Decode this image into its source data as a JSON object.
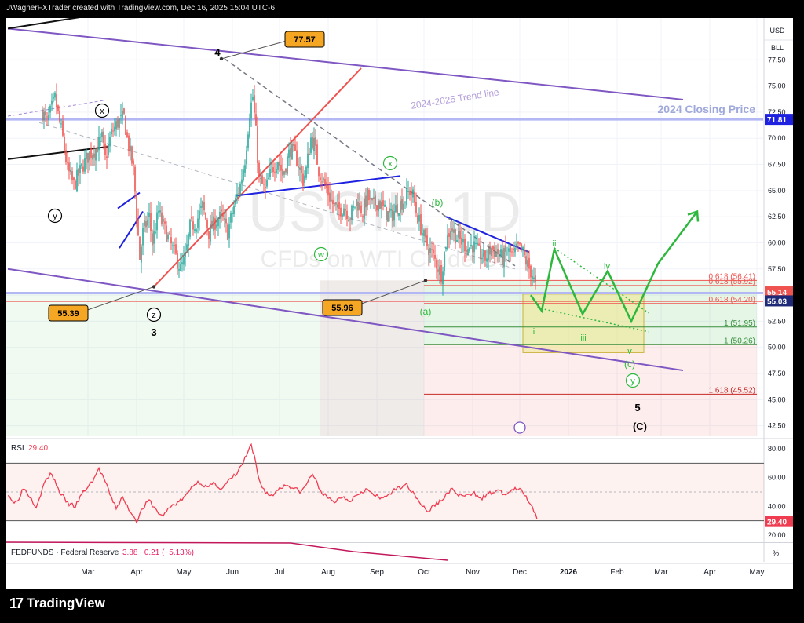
{
  "header": {
    "credit": "JWagnerFXTrader created with TradingView.com, Dec 16, 2025 15:04 UTC-6"
  },
  "brand": {
    "name": "TradingView",
    "icon": "tradingview-logo-icon"
  },
  "chart_data": {
    "type": "candlestick",
    "symbol_watermark": "USOIL, 1D",
    "watermark_sub": "CFDs on WTI Crude Oil",
    "currency": "USD",
    "unit": "BLL",
    "ylim": [
      41.5,
      81.5
    ],
    "y_ticks": [
      42.5,
      45.0,
      47.5,
      50.0,
      52.5,
      55.0,
      57.5,
      60.0,
      62.5,
      65.0,
      67.5,
      70.0,
      72.5,
      75.0,
      77.5
    ],
    "x_labels": [
      {
        "label": "Mar",
        "d": 51
      },
      {
        "label": "Apr",
        "d": 82
      },
      {
        "label": "May",
        "d": 112
      },
      {
        "label": "Jun",
        "d": 143
      },
      {
        "label": "Jul",
        "d": 173
      },
      {
        "label": "Aug",
        "d": 204
      },
      {
        "label": "Sep",
        "d": 235
      },
      {
        "label": "Oct",
        "d": 265
      },
      {
        "label": "Nov",
        "d": 296
      },
      {
        "label": "Dec",
        "d": 326
      },
      {
        "label": "2026",
        "d": 357
      },
      {
        "label": "Feb",
        "d": 388
      },
      {
        "label": "Mar",
        "d": 416
      },
      {
        "label": "Apr",
        "d": 447
      },
      {
        "label": "May",
        "d": 477
      }
    ],
    "colors": {
      "up": "#26a69a",
      "down": "#ef5350",
      "purple": "#7e57c2",
      "green": "#2db83d",
      "blue": "#1e22e0"
    },
    "anchors": [
      [
        22,
        72.5
      ],
      [
        25,
        71.5
      ],
      [
        30,
        73.8
      ],
      [
        35,
        70.0
      ],
      [
        38,
        67.0
      ],
      [
        42,
        65.5
      ],
      [
        48,
        67.5
      ],
      [
        52,
        68.5
      ],
      [
        56,
        69.0
      ],
      [
        60,
        70.0
      ],
      [
        62,
        68.0
      ],
      [
        66,
        70.5
      ],
      [
        70,
        71.5
      ],
      [
        74,
        72.0
      ],
      [
        76,
        70.0
      ],
      [
        80,
        67.0
      ],
      [
        84,
        58.5
      ],
      [
        86,
        61.0
      ],
      [
        90,
        62.5
      ],
      [
        92,
        60.0
      ],
      [
        96,
        63.0
      ],
      [
        98,
        62.0
      ],
      [
        102,
        60.5
      ],
      [
        106,
        59.0
      ],
      [
        110,
        57.5
      ],
      [
        113,
        58.5
      ],
      [
        116,
        61.5
      ],
      [
        120,
        62.0
      ],
      [
        124,
        63.5
      ],
      [
        128,
        61.0
      ],
      [
        132,
        62.0
      ],
      [
        136,
        62.5
      ],
      [
        140,
        61.0
      ],
      [
        144,
        63.5
      ],
      [
        148,
        65.5
      ],
      [
        151,
        68.0
      ],
      [
        154,
        72.5
      ],
      [
        156,
        74.0
      ],
      [
        158,
        70.5
      ],
      [
        160,
        66.0
      ],
      [
        164,
        65.0
      ],
      [
        168,
        67.0
      ],
      [
        172,
        68.0
      ],
      [
        175,
        66.5
      ],
      [
        180,
        69.0
      ],
      [
        184,
        68.0
      ],
      [
        188,
        66.0
      ],
      [
        190,
        67.0
      ],
      [
        193,
        70.0
      ],
      [
        195,
        69.5
      ],
      [
        198,
        67.0
      ],
      [
        202,
        65.5
      ],
      [
        206,
        64.0
      ],
      [
        210,
        63.0
      ],
      [
        214,
        63.5
      ],
      [
        218,
        62.5
      ],
      [
        222,
        64.0
      ],
      [
        226,
        63.0
      ],
      [
        229,
        64.5
      ],
      [
        232,
        63.5
      ],
      [
        236,
        64.0
      ],
      [
        240,
        63.0
      ],
      [
        244,
        62.5
      ],
      [
        248,
        63.5
      ],
      [
        252,
        64.0
      ],
      [
        256,
        65.0
      ],
      [
        258,
        64.5
      ],
      [
        260,
        63.0
      ],
      [
        263,
        61.5
      ],
      [
        266,
        60.0
      ],
      [
        270,
        59.0
      ],
      [
        273,
        58.0
      ],
      [
        276,
        57.0
      ],
      [
        279,
        60.0
      ],
      [
        282,
        61.5
      ],
      [
        286,
        60.5
      ],
      [
        290,
        60.0
      ],
      [
        293,
        59.5
      ],
      [
        296,
        59.8
      ],
      [
        300,
        59.0
      ],
      [
        304,
        58.5
      ],
      [
        308,
        59.5
      ],
      [
        312,
        59.0
      ],
      [
        315,
        58.5
      ],
      [
        318,
        59.2
      ],
      [
        322,
        58.8
      ],
      [
        325,
        59.5
      ],
      [
        328,
        59.0
      ],
      [
        331,
        57.8
      ],
      [
        334,
        57.0
      ],
      [
        337,
        55.1
      ]
    ],
    "overlays": {
      "purple_channel_upper": {
        "p1": [
          0,
          80.5
        ],
        "p2": [
          430,
          73.7
        ]
      },
      "purple_channel_lower": {
        "p1": [
          0,
          57.5
        ],
        "p2": [
          430,
          47.8
        ]
      },
      "trend_line_label": "2024-2025 Trend line",
      "closing_price_line": {
        "y": 71.81,
        "label": "2024 Closing Price"
      },
      "support_line": {
        "y": 55.2
      },
      "black_lines": [
        {
          "p1": [
            0,
            80.5
          ],
          "p2": [
            64,
            82.0
          ]
        },
        {
          "p1": [
            0,
            68.0
          ],
          "p2": [
            64,
            69.2
          ]
        }
      ],
      "red_line": {
        "p1": [
          93,
          55.8
        ],
        "p2": [
          225,
          76.7
        ]
      },
      "blue_line_top": {
        "p1": [
          145,
          64.5
        ],
        "p2": [
          250,
          66.4
        ]
      },
      "blue_line_2": {
        "p1": [
          279,
          62.5
        ],
        "p2": [
          332,
          59.1
        ]
      },
      "blue_small": {
        "p1": [
          70,
          59.5
        ],
        "p2": [
          85,
          64.8
        ]
      },
      "gray_dashed_line": {
        "p1": [
          138,
          77.6
        ],
        "p2": [
          323,
          57.8
        ]
      },
      "fib_levels": [
        {
          "label": "0.618 (56.41)",
          "y": 56.41
        },
        {
          "label": "0.618 (55.92)",
          "y": 55.92
        },
        {
          "label": "0.618 (54.20)",
          "y": 54.2
        },
        {
          "label": "1 (51.95)",
          "y": 51.95
        },
        {
          "label": "1 (50.26)",
          "y": 50.26
        },
        {
          "label": "1.618 (45.52)",
          "y": 45.52
        }
      ],
      "projection_path": [
        [
          333,
          55.0
        ],
        [
          340,
          53.5
        ],
        [
          348,
          59.4
        ],
        [
          366,
          53.2
        ],
        [
          382,
          57.3
        ],
        [
          397,
          52.5
        ],
        [
          414,
          58.0
        ],
        [
          439,
          63.0
        ]
      ],
      "projection_dotted": [
        {
          "p1": [
            337,
            53.8
          ],
          "p2": [
            408,
            51.5
          ]
        },
        {
          "p1": [
            348,
            59.5
          ],
          "p2": [
            408,
            53.3
          ]
        }
      ],
      "box": {
        "x0": 328,
        "x1": 405,
        "y0": 49.5,
        "y1": 55.1
      }
    },
    "callouts": [
      {
        "label": "77.57",
        "value": 77.57
      },
      {
        "label": "55.39",
        "value": 55.39
      },
      {
        "label": "55.96",
        "value": 55.96
      }
    ],
    "wave_labels": [
      {
        "text": "4"
      },
      {
        "text": "3"
      },
      {
        "text": "5"
      },
      {
        "text": "(C)"
      },
      {
        "text": "x"
      },
      {
        "text": "y"
      },
      {
        "text": "z"
      },
      {
        "text": "x"
      },
      {
        "text": "w"
      },
      {
        "text": "(b)"
      },
      {
        "text": "(a)"
      },
      {
        "text": "(c)"
      },
      {
        "text": "y"
      },
      {
        "text": "i"
      },
      {
        "text": "ii"
      },
      {
        "text": "iii"
      },
      {
        "text": "iv"
      },
      {
        "text": "v"
      }
    ],
    "price_badges": [
      {
        "label": "71.81",
        "color": "#1e22e0"
      },
      {
        "label": "55.14",
        "color": "#ef5350"
      },
      {
        "label": "55.03",
        "color": "#1e2a78"
      }
    ],
    "rsi": {
      "label": "RSI",
      "value": "29.40",
      "ylim": [
        15,
        85
      ],
      "ticks": [
        20.0,
        40.0,
        60.0,
        80.0
      ],
      "bands": [
        30,
        50,
        70
      ],
      "anchors": [
        [
          0,
          49
        ],
        [
          4,
          42
        ],
        [
          7,
          46
        ],
        [
          10,
          53
        ],
        [
          14,
          47
        ],
        [
          18,
          40
        ],
        [
          24,
          58
        ],
        [
          28,
          63
        ],
        [
          32,
          52
        ],
        [
          38,
          42
        ],
        [
          43,
          40
        ],
        [
          48,
          50
        ],
        [
          53,
          56
        ],
        [
          58,
          66
        ],
        [
          61,
          60
        ],
        [
          65,
          48
        ],
        [
          69,
          39
        ],
        [
          73,
          46
        ],
        [
          76,
          40
        ],
        [
          79,
          35
        ],
        [
          82,
          30
        ],
        [
          86,
          39
        ],
        [
          90,
          44
        ],
        [
          94,
          38
        ],
        [
          98,
          33
        ],
        [
          104,
          40
        ],
        [
          110,
          44
        ],
        [
          114,
          48
        ],
        [
          118,
          55
        ],
        [
          122,
          57
        ],
        [
          127,
          53
        ],
        [
          132,
          56
        ],
        [
          136,
          52
        ],
        [
          141,
          58
        ],
        [
          146,
          63
        ],
        [
          150,
          71
        ],
        [
          153,
          78
        ],
        [
          155,
          82
        ],
        [
          157,
          74
        ],
        [
          160,
          58
        ],
        [
          164,
          50
        ],
        [
          168,
          47
        ],
        [
          173,
          53
        ],
        [
          178,
          55
        ],
        [
          183,
          52
        ],
        [
          187,
          50
        ],
        [
          191,
          57
        ],
        [
          194,
          63
        ],
        [
          198,
          53
        ],
        [
          203,
          46
        ],
        [
          208,
          43
        ],
        [
          213,
          47
        ],
        [
          218,
          44
        ],
        [
          223,
          49
        ],
        [
          228,
          52
        ],
        [
          233,
          48
        ],
        [
          238,
          45
        ],
        [
          243,
          49
        ],
        [
          248,
          52
        ],
        [
          253,
          56
        ],
        [
          258,
          50
        ],
        [
          263,
          42
        ],
        [
          267,
          36
        ],
        [
          272,
          41
        ],
        [
          277,
          45
        ],
        [
          282,
          52
        ],
        [
          287,
          48
        ],
        [
          292,
          47
        ],
        [
          297,
          49
        ],
        [
          302,
          46
        ],
        [
          307,
          49
        ],
        [
          312,
          51
        ],
        [
          317,
          48
        ],
        [
          322,
          52
        ],
        [
          327,
          51
        ],
        [
          331,
          45
        ],
        [
          334,
          40
        ],
        [
          337,
          31
        ]
      ]
    },
    "fedfunds": {
      "label": "FEDFUNDS · Federal Reserve",
      "value": "3.88",
      "change": "−0.21 (−5.13%)",
      "unit": "%"
    }
  }
}
